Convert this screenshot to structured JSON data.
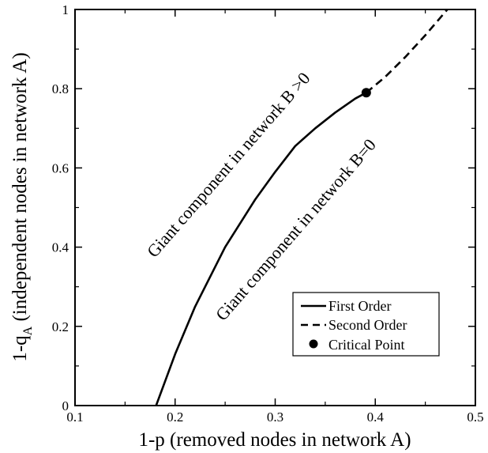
{
  "chart_data": {
    "type": "line",
    "xlabel": "1-p (removed nodes in network A)",
    "ylabel_main": "1-q",
    "ylabel_sub": "A",
    "ylabel_rest": " (independent nodes in network A)",
    "xlim": [
      0.1,
      0.5
    ],
    "ylim": [
      0,
      1
    ],
    "x_ticks": [
      "0.1",
      "0.2",
      "0.3",
      "0.4",
      "0.5"
    ],
    "y_ticks": [
      "0",
      "0.2",
      "0.4",
      "0.6",
      "0.8",
      "1"
    ],
    "series": [
      {
        "name": "First Order",
        "style": "solid",
        "x": [
          0.181,
          0.2,
          0.22,
          0.25,
          0.28,
          0.3,
          0.32,
          0.34,
          0.36,
          0.38,
          0.391
        ],
        "y": [
          0.0,
          0.13,
          0.25,
          0.4,
          0.52,
          0.59,
          0.655,
          0.7,
          0.74,
          0.775,
          0.79
        ]
      },
      {
        "name": "Second Order",
        "style": "dashed",
        "x": [
          0.391,
          0.41,
          0.43,
          0.45,
          0.472
        ],
        "y": [
          0.79,
          0.83,
          0.88,
          0.935,
          1.0
        ]
      }
    ],
    "critical_point": {
      "name": "Critical Point",
      "x": 0.391,
      "y": 0.79
    },
    "annotations": [
      "Giant component in network B >0",
      "Giant component in network B=0"
    ],
    "legend_position": "bottom-right",
    "grid": false
  }
}
